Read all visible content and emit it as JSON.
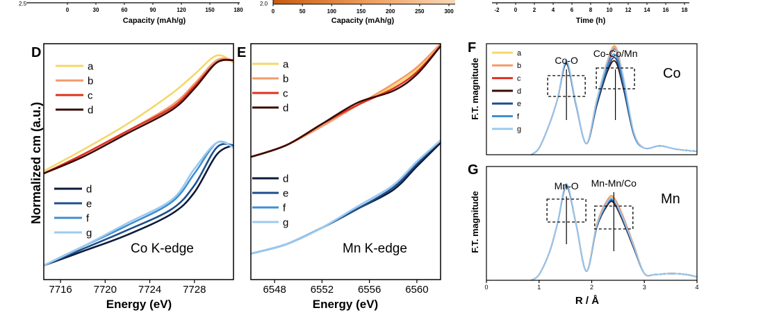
{
  "top_strip": {
    "left": {
      "ticks": [
        "0",
        "30",
        "60",
        "90",
        "120",
        "150",
        "180"
      ],
      "corner_tick": "2.5",
      "xlabel": "Capacity (mAh/g)"
    },
    "middle": {
      "ticks": [
        "0",
        "50",
        "100",
        "150",
        "200",
        "250",
        "300"
      ],
      "corner_tick": "2.0",
      "xlabel": "Capacity (mAh/g)"
    },
    "right": {
      "ticks": [
        "-2",
        "0",
        "2",
        "4",
        "6",
        "8",
        "10",
        "12",
        "14",
        "16",
        "18"
      ],
      "xlabel": "Time (h)"
    }
  },
  "colors": {
    "a": "#f5d76a",
    "b": "#f39a6b",
    "c": "#e0301e",
    "d_dark": "#3a0a06",
    "d_navy": "#0d1a3a",
    "e": "#1f4e8c",
    "f": "#3f8fd0",
    "g": "#9ccaf0",
    "gradient": [
      "#c85a10",
      "#f0a060",
      "#f8d8b8"
    ]
  },
  "chart_data": [
    {
      "panel": "D",
      "type": "line",
      "annotation": "Co K-edge",
      "xlabel": "Energy (eV)",
      "ylabel": "Normalized cm (a.u.)",
      "xlim": [
        7714.5,
        7731.5
      ],
      "xticks": [
        7716,
        7720,
        7724,
        7728
      ],
      "ylim": [
        0,
        1
      ],
      "legend_upper": [
        "a",
        "b",
        "c",
        "d"
      ],
      "legend_lower": [
        "d",
        "e",
        "f",
        "g"
      ],
      "series": [
        {
          "name": "a",
          "group": "upper",
          "x": [
            7714.5,
            7718,
            7722,
            7726,
            7728,
            7730,
            7731.5
          ],
          "y": [
            0.46,
            0.55,
            0.66,
            0.79,
            0.87,
            0.95,
            0.92
          ]
        },
        {
          "name": "b",
          "group": "upper",
          "x": [
            7714.5,
            7718,
            7722,
            7726,
            7728,
            7730,
            7731.5
          ],
          "y": [
            0.45,
            0.53,
            0.63,
            0.74,
            0.83,
            0.93,
            0.93
          ]
        },
        {
          "name": "c",
          "group": "upper",
          "x": [
            7714.5,
            7718,
            7722,
            7726,
            7728,
            7730,
            7731.5
          ],
          "y": [
            0.45,
            0.53,
            0.63,
            0.73,
            0.82,
            0.92,
            0.93
          ]
        },
        {
          "name": "d",
          "group": "upper",
          "x": [
            7714.5,
            7718,
            7722,
            7726,
            7728,
            7730,
            7731.5
          ],
          "y": [
            0.45,
            0.52,
            0.62,
            0.72,
            0.81,
            0.92,
            0.93
          ]
        },
        {
          "name": "d",
          "group": "lower",
          "x": [
            7714.5,
            7718,
            7722,
            7726,
            7728,
            7730,
            7731.5
          ],
          "y": [
            0.06,
            0.12,
            0.19,
            0.28,
            0.37,
            0.53,
            0.57
          ]
        },
        {
          "name": "e",
          "group": "lower",
          "x": [
            7714.5,
            7718,
            7722,
            7726,
            7728,
            7730,
            7731.5
          ],
          "y": [
            0.06,
            0.13,
            0.21,
            0.3,
            0.4,
            0.56,
            0.57
          ]
        },
        {
          "name": "f",
          "group": "lower",
          "x": [
            7714.5,
            7718,
            7722,
            7726,
            7728,
            7730,
            7731.5
          ],
          "y": [
            0.06,
            0.14,
            0.23,
            0.33,
            0.45,
            0.58,
            0.56
          ]
        },
        {
          "name": "g",
          "group": "lower",
          "x": [
            7714.5,
            7718,
            7722,
            7726,
            7728,
            7730,
            7731.5
          ],
          "y": [
            0.06,
            0.14,
            0.24,
            0.34,
            0.47,
            0.58,
            0.56
          ]
        }
      ]
    },
    {
      "panel": "E",
      "type": "line",
      "annotation": "Mn K-edge",
      "xlabel": "Energy (eV)",
      "xlim": [
        6546,
        6562
      ],
      "xticks": [
        6548,
        6552,
        6556,
        6560
      ],
      "ylim": [
        0,
        1
      ],
      "legend_upper": [
        "a",
        "b",
        "c",
        "d"
      ],
      "legend_lower": [
        "d",
        "e",
        "f",
        "g"
      ],
      "series": [
        {
          "name": "a",
          "group": "upper",
          "x": [
            6546,
            6549,
            6552,
            6555,
            6558,
            6560,
            6562
          ],
          "y": [
            0.52,
            0.57,
            0.65,
            0.74,
            0.82,
            0.89,
            1.0
          ]
        },
        {
          "name": "b",
          "group": "upper",
          "x": [
            6546,
            6549,
            6552,
            6555,
            6558,
            6560,
            6562
          ],
          "y": [
            0.52,
            0.57,
            0.65,
            0.74,
            0.83,
            0.9,
            1.0
          ]
        },
        {
          "name": "c",
          "group": "upper",
          "x": [
            6546,
            6549,
            6552,
            6555,
            6558,
            6560,
            6562
          ],
          "y": [
            0.52,
            0.57,
            0.66,
            0.74,
            0.81,
            0.88,
            0.99
          ]
        },
        {
          "name": "d",
          "group": "upper",
          "x": [
            6546,
            6549,
            6552,
            6555,
            6558,
            6560,
            6562
          ],
          "y": [
            0.52,
            0.57,
            0.66,
            0.75,
            0.8,
            0.87,
            0.99
          ]
        },
        {
          "name": "d",
          "group": "lower",
          "x": [
            6546,
            6549,
            6552,
            6555,
            6558,
            6560,
            6562
          ],
          "y": [
            0.11,
            0.15,
            0.22,
            0.3,
            0.38,
            0.48,
            0.58
          ]
        },
        {
          "name": "e",
          "group": "lower",
          "x": [
            6546,
            6549,
            6552,
            6555,
            6558,
            6560,
            6562
          ],
          "y": [
            0.11,
            0.15,
            0.22,
            0.3,
            0.39,
            0.49,
            0.59
          ]
        },
        {
          "name": "f",
          "group": "lower",
          "x": [
            6546,
            6549,
            6552,
            6555,
            6558,
            6560,
            6562
          ],
          "y": [
            0.11,
            0.15,
            0.22,
            0.31,
            0.4,
            0.5,
            0.59
          ]
        },
        {
          "name": "g",
          "group": "lower",
          "x": [
            6546,
            6549,
            6552,
            6555,
            6558,
            6560,
            6562
          ],
          "y": [
            0.11,
            0.15,
            0.22,
            0.31,
            0.4,
            0.5,
            0.59
          ]
        }
      ]
    },
    {
      "panel": "F",
      "type": "line",
      "annotation": "Co",
      "ylabel": "F.T. magnitude",
      "xlim": [
        0,
        4
      ],
      "ylim": [
        0,
        1
      ],
      "peak_labels": [
        "Co-O",
        "Co-Co/Mn"
      ],
      "peak_positions": [
        1.52,
        2.45
      ],
      "legend": [
        "a",
        "b",
        "c",
        "d",
        "e",
        "f",
        "g"
      ],
      "series": [
        {
          "name": "a",
          "x": [
            0.85,
            1.0,
            1.2,
            1.35,
            1.52,
            1.7,
            1.9,
            2.1,
            2.3,
            2.45,
            2.6,
            2.8,
            3.0,
            3.3,
            3.6,
            4.0
          ],
          "y": [
            0.0,
            0.06,
            0.28,
            0.5,
            0.84,
            0.46,
            0.1,
            0.5,
            0.85,
            0.98,
            0.7,
            0.2,
            0.06,
            0.08,
            0.05,
            0.03
          ]
        },
        {
          "name": "b",
          "x": [
            0.85,
            1.0,
            1.2,
            1.35,
            1.52,
            1.7,
            1.9,
            2.1,
            2.3,
            2.45,
            2.6,
            2.8,
            3.0,
            3.3,
            3.6,
            4.0
          ],
          "y": [
            0.0,
            0.06,
            0.28,
            0.5,
            0.84,
            0.46,
            0.1,
            0.5,
            0.85,
            0.97,
            0.7,
            0.2,
            0.06,
            0.08,
            0.05,
            0.03
          ]
        },
        {
          "name": "c",
          "x": [
            0.85,
            1.0,
            1.2,
            1.35,
            1.52,
            1.7,
            1.9,
            2.1,
            2.3,
            2.45,
            2.6,
            2.8,
            3.0,
            3.3,
            3.6,
            4.0
          ],
          "y": [
            0.0,
            0.06,
            0.28,
            0.5,
            0.84,
            0.46,
            0.1,
            0.5,
            0.82,
            0.95,
            0.68,
            0.2,
            0.06,
            0.08,
            0.05,
            0.03
          ]
        },
        {
          "name": "d",
          "x": [
            0.85,
            1.0,
            1.2,
            1.35,
            1.52,
            1.7,
            1.9,
            2.1,
            2.3,
            2.45,
            2.6,
            2.8,
            3.0,
            3.3,
            3.6,
            4.0
          ],
          "y": [
            0.0,
            0.06,
            0.28,
            0.5,
            0.82,
            0.45,
            0.1,
            0.45,
            0.75,
            0.84,
            0.6,
            0.18,
            0.06,
            0.08,
            0.05,
            0.03
          ]
        },
        {
          "name": "e",
          "x": [
            0.85,
            1.0,
            1.2,
            1.35,
            1.52,
            1.7,
            1.9,
            2.1,
            2.3,
            2.45,
            2.6,
            2.8,
            3.0,
            3.3,
            3.6,
            4.0
          ],
          "y": [
            0.0,
            0.06,
            0.28,
            0.5,
            0.83,
            0.45,
            0.1,
            0.46,
            0.77,
            0.87,
            0.62,
            0.18,
            0.06,
            0.08,
            0.05,
            0.03
          ]
        },
        {
          "name": "f",
          "x": [
            0.85,
            1.0,
            1.2,
            1.35,
            1.52,
            1.7,
            1.9,
            2.1,
            2.3,
            2.45,
            2.6,
            2.8,
            3.0,
            3.3,
            3.6,
            4.0
          ],
          "y": [
            0.0,
            0.06,
            0.28,
            0.5,
            0.84,
            0.46,
            0.1,
            0.48,
            0.8,
            0.9,
            0.65,
            0.19,
            0.06,
            0.08,
            0.05,
            0.03
          ]
        },
        {
          "name": "g",
          "x": [
            0.85,
            1.0,
            1.2,
            1.35,
            1.52,
            1.7,
            1.9,
            2.1,
            2.3,
            2.45,
            2.6,
            2.8,
            3.0,
            3.3,
            3.6,
            4.0
          ],
          "y": [
            0.0,
            0.06,
            0.28,
            0.5,
            0.85,
            0.46,
            0.1,
            0.5,
            0.84,
            0.96,
            0.7,
            0.2,
            0.06,
            0.08,
            0.05,
            0.03
          ]
        }
      ]
    },
    {
      "panel": "G",
      "type": "line",
      "annotation": "Mn",
      "xlabel": "R / Å",
      "ylabel": "F.T. magnitude",
      "xlim": [
        0,
        4
      ],
      "xticks": [
        0,
        1,
        2,
        3,
        4
      ],
      "ylim": [
        0,
        1
      ],
      "peak_labels": [
        "Mn-O",
        "Mn-Mn/Co"
      ],
      "peak_positions": [
        1.52,
        2.42
      ],
      "series": [
        {
          "name": "a",
          "x": [
            0.85,
            1.0,
            1.2,
            1.35,
            1.52,
            1.7,
            1.9,
            2.1,
            2.3,
            2.42,
            2.6,
            2.8,
            3.0,
            3.2,
            3.5,
            3.8,
            4.0
          ],
          "y": [
            0.0,
            0.05,
            0.25,
            0.5,
            0.84,
            0.5,
            0.08,
            0.5,
            0.7,
            0.72,
            0.55,
            0.3,
            0.06,
            0.05,
            0.06,
            0.05,
            0.03
          ]
        },
        {
          "name": "b",
          "x": [
            0.85,
            1.0,
            1.2,
            1.35,
            1.52,
            1.7,
            1.9,
            2.1,
            2.3,
            2.42,
            2.6,
            2.8,
            3.0,
            3.2,
            3.5,
            3.8,
            4.0
          ],
          "y": [
            0.0,
            0.05,
            0.25,
            0.5,
            0.84,
            0.5,
            0.08,
            0.5,
            0.71,
            0.73,
            0.56,
            0.31,
            0.06,
            0.05,
            0.06,
            0.05,
            0.03
          ]
        },
        {
          "name": "c",
          "x": [
            0.85,
            1.0,
            1.2,
            1.35,
            1.52,
            1.7,
            1.9,
            2.1,
            2.3,
            2.42,
            2.6,
            2.8,
            3.0,
            3.2,
            3.5,
            3.8,
            4.0
          ],
          "y": [
            0.0,
            0.05,
            0.25,
            0.5,
            0.83,
            0.5,
            0.08,
            0.49,
            0.69,
            0.71,
            0.54,
            0.3,
            0.06,
            0.05,
            0.06,
            0.05,
            0.03
          ]
        },
        {
          "name": "d",
          "x": [
            0.85,
            1.0,
            1.2,
            1.35,
            1.52,
            1.7,
            1.9,
            2.1,
            2.3,
            2.42,
            2.6,
            2.8,
            3.0,
            3.2,
            3.5,
            3.8,
            4.0
          ],
          "y": [
            0.0,
            0.05,
            0.25,
            0.5,
            0.83,
            0.5,
            0.08,
            0.47,
            0.66,
            0.68,
            0.51,
            0.28,
            0.06,
            0.05,
            0.06,
            0.05,
            0.03
          ]
        },
        {
          "name": "e",
          "x": [
            0.85,
            1.0,
            1.2,
            1.35,
            1.52,
            1.7,
            1.9,
            2.1,
            2.3,
            2.42,
            2.6,
            2.8,
            3.0,
            3.2,
            3.5,
            3.8,
            4.0
          ],
          "y": [
            0.0,
            0.05,
            0.25,
            0.5,
            0.84,
            0.5,
            0.08,
            0.48,
            0.67,
            0.69,
            0.52,
            0.29,
            0.06,
            0.05,
            0.06,
            0.05,
            0.03
          ]
        },
        {
          "name": "f",
          "x": [
            0.85,
            1.0,
            1.2,
            1.35,
            1.52,
            1.7,
            1.9,
            2.1,
            2.3,
            2.42,
            2.6,
            2.8,
            3.0,
            3.2,
            3.5,
            3.8,
            4.0
          ],
          "y": [
            0.0,
            0.05,
            0.25,
            0.5,
            0.84,
            0.5,
            0.08,
            0.48,
            0.68,
            0.7,
            0.53,
            0.29,
            0.06,
            0.05,
            0.06,
            0.05,
            0.03
          ]
        },
        {
          "name": "g",
          "x": [
            0.85,
            1.0,
            1.2,
            1.35,
            1.52,
            1.7,
            1.9,
            2.1,
            2.3,
            2.42,
            2.6,
            2.8,
            3.0,
            3.2,
            3.5,
            3.8,
            4.0
          ],
          "y": [
            0.0,
            0.05,
            0.25,
            0.5,
            0.85,
            0.5,
            0.08,
            0.49,
            0.69,
            0.71,
            0.54,
            0.3,
            0.06,
            0.05,
            0.06,
            0.05,
            0.03
          ]
        }
      ]
    }
  ]
}
